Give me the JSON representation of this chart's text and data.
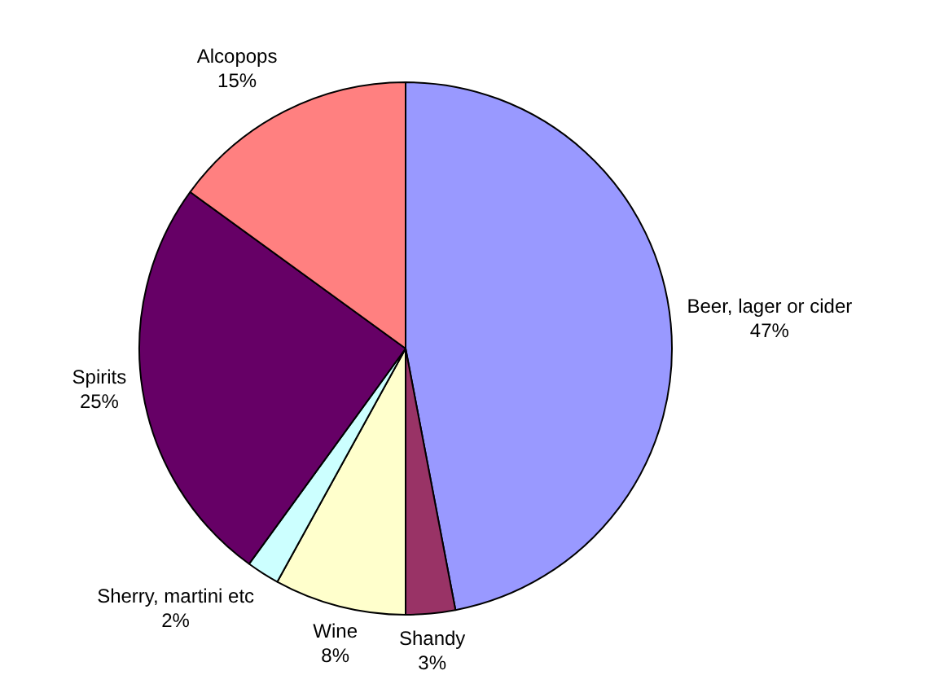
{
  "chart_data": {
    "type": "pie",
    "categories": [
      "Beer, lager or cider",
      "Shandy",
      "Wine",
      "Sherry, martini etc",
      "Spirits",
      "Alcopops"
    ],
    "values": [
      47,
      3,
      8,
      2,
      25,
      15
    ],
    "value_labels": [
      "47%",
      "3%",
      "8%",
      "2%",
      "25%",
      "15%"
    ],
    "colors": [
      "#9999ff",
      "#993366",
      "#ffffcc",
      "#ccffff",
      "#660066",
      "#ff8080"
    ],
    "legend": false
  }
}
